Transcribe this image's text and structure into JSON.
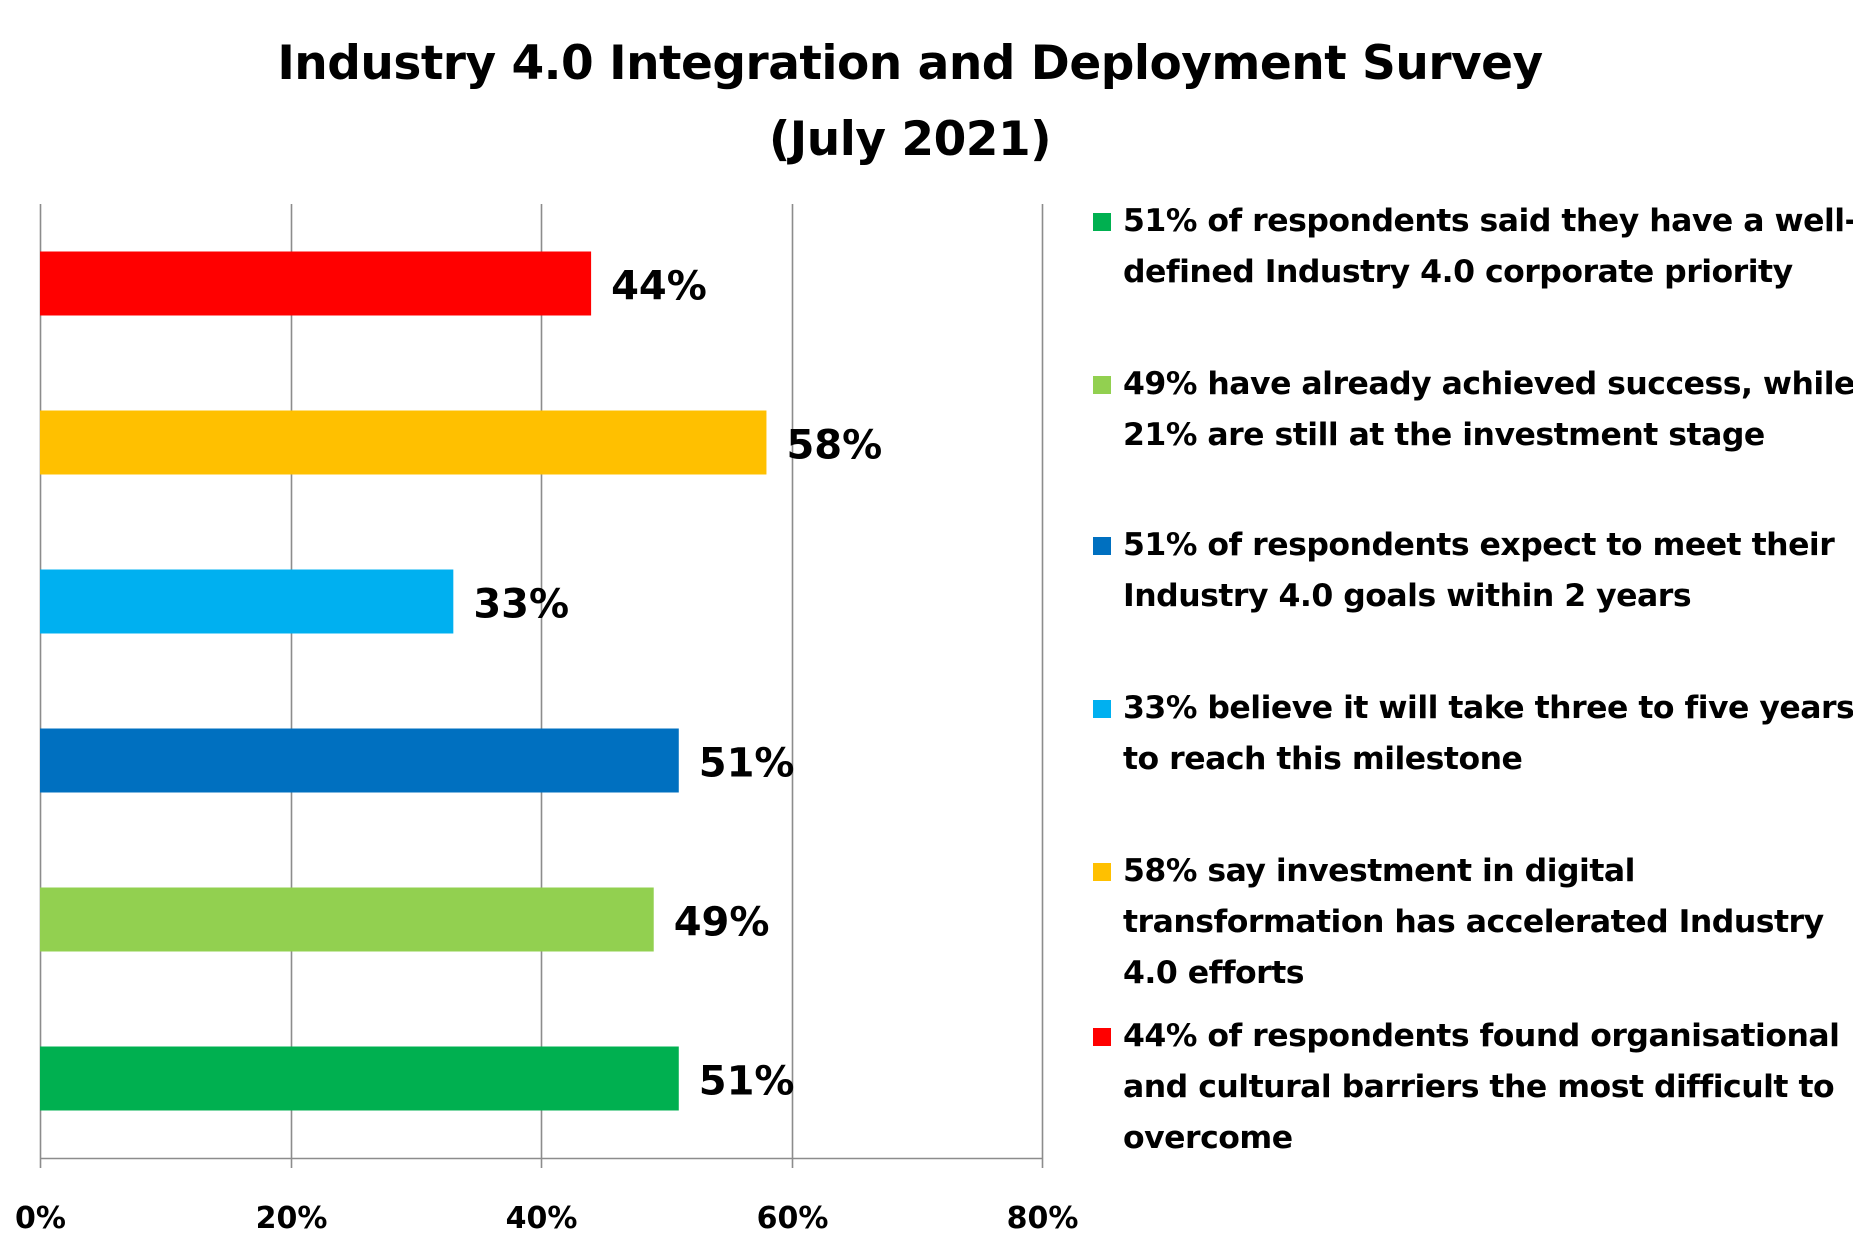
{
  "chart_data": {
    "type": "bar",
    "orientation": "horizontal",
    "title": [
      "Industry 4.0 Integration and Deployment Survey",
      "(July 2021)"
    ],
    "xlabel": "",
    "ylabel": "",
    "xlim": [
      0,
      80
    ],
    "xticks": [
      0,
      20,
      40,
      60,
      80
    ],
    "xtick_labels": [
      "0%",
      "20%",
      "40%",
      "60%",
      "80%"
    ],
    "grid": "vertical",
    "legend_position": "right",
    "categories": [
      "44% of respondents found organisational and cultural barriers the most difficult to overcome",
      "58% say investment in digital transformation has accelerated Industry 4.0 efforts",
      "33% believe it will take three to five years to reach this milestone",
      "51% of respondents expect to meet their Industry 4.0 goals within 2 years",
      "49% have already achieved success, while 21% are still at the investment stage",
      "51% of respondents said they have a well-defined Industry 4.0 corporate priority"
    ],
    "values": [
      44,
      58,
      33,
      51,
      49,
      51
    ],
    "data_labels": [
      "44%",
      "58%",
      "33%",
      "51%",
      "49%",
      "51%"
    ],
    "colors": [
      "#FF0000",
      "#FFC000",
      "#00B0F0",
      "#0070C0",
      "#92D050",
      "#00B050"
    ],
    "legend": [
      {
        "lines": [
          "51% of respondents said they have a well-",
          "defined Industry 4.0 corporate priority"
        ],
        "color": "#00B050"
      },
      {
        "lines": [
          "49% have already achieved success, while",
          "21% are still at the investment stage"
        ],
        "color": "#92D050"
      },
      {
        "lines": [
          "51% of respondents expect to meet their",
          "Industry 4.0 goals within 2 years"
        ],
        "color": "#0070C0"
      },
      {
        "lines": [
          "33% believe it will take three to five years",
          "to reach this milestone"
        ],
        "color": "#00B0F0"
      },
      {
        "lines": [
          "58% say investment in digital",
          "transformation has accelerated Industry",
          "4.0 efforts"
        ],
        "color": "#FFC000"
      },
      {
        "lines": [
          "44% of respondents found organisational",
          "and cultural barriers the most difficult to",
          "overcome"
        ],
        "color": "#FF0000"
      }
    ]
  }
}
